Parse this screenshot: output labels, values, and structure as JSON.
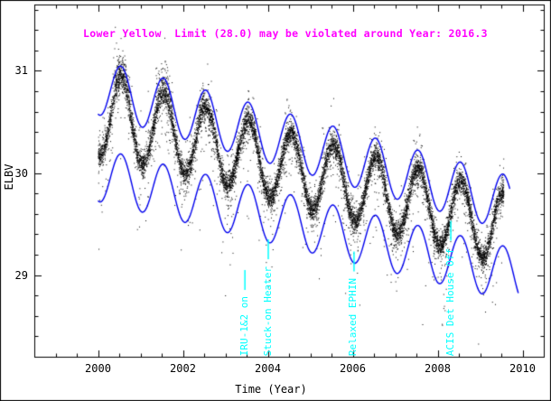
{
  "chart_data": {
    "type": "scatter",
    "title": "Lower Yellow  Limit (28.0) may be violated around Year: 2016.3",
    "title_color": "#ff00ff",
    "xlabel": "Time (Year)",
    "ylabel": "ELBV",
    "xlim": [
      1998.5,
      2010.5
    ],
    "ylim": [
      28.2,
      31.65
    ],
    "xticks": [
      2000,
      2002,
      2004,
      2006,
      2008,
      2010
    ],
    "yticks": [
      29,
      30,
      31
    ],
    "axis_color": "#000000",
    "background": "#ffffff",
    "grid": false,
    "scatter": {
      "name": "ELBV telemetry",
      "color": "#000000",
      "x_start": 2000.0,
      "x_end": 2009.55,
      "trend_start": 30.59,
      "trend_end": 29.46,
      "seasonal_amplitude": 0.35,
      "seasonal_phase_peak": 0.54,
      "noise_core_sd": 0.055,
      "noise_mid_sd": 0.16,
      "outlier_frac": 0.04,
      "n_points": 12000
    },
    "envelopes": [
      {
        "name": "upper-envelope",
        "color": "#0000ee",
        "x_start": 2000.0,
        "x_end": 2009.7,
        "base_start": 30.84,
        "base_end": 29.7,
        "amplitude": 0.27,
        "phase_peak": 0.54
      },
      {
        "name": "lower-envelope",
        "color": "#0000ee",
        "x_start": 2000.0,
        "x_end": 2009.9,
        "base_start": 29.98,
        "base_end": 28.99,
        "amplitude": 0.26,
        "phase_peak": 0.54
      }
    ],
    "annotations": [
      {
        "label": "IRU-1&2 on",
        "x": 2003.45,
        "color": "#00ffff"
      },
      {
        "label": "Stuck-on Heater",
        "x": 2004.0,
        "color": "#00ffff"
      },
      {
        "label": "Relaxed EPHIN",
        "x": 2006.02,
        "color": "#00ffff"
      },
      {
        "label": "ACIS Det House Off",
        "x": 2008.3,
        "color": "#00ffff"
      }
    ]
  }
}
